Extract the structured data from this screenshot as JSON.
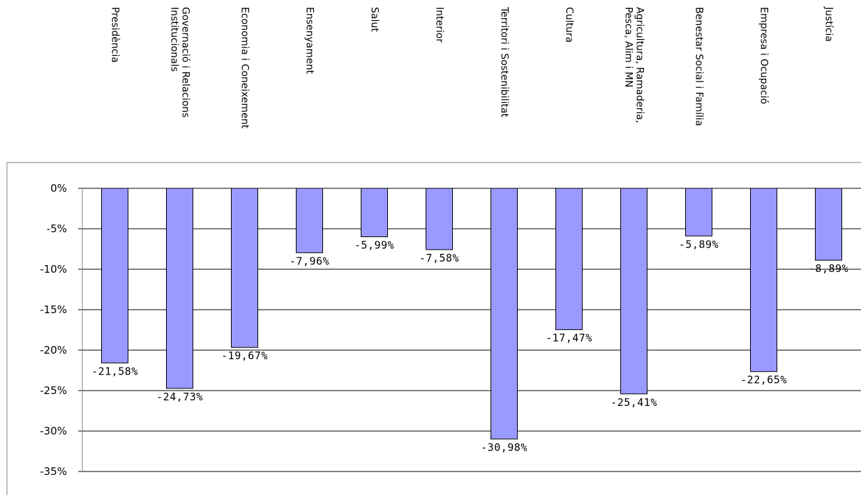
{
  "chart_data": {
    "type": "bar",
    "title": "",
    "xlabel": "",
    "ylabel": "",
    "categories": [
      "Presidència",
      "Governació i Relacions Institucionals",
      "Economia i Coneixement",
      "Ensenyament",
      "Salut",
      "Interior",
      "Territori i Sostenibilitat",
      "Cultura",
      "Agricultura, Ramaderia, Pesca, Alim i MN",
      "Benestar Social i Família",
      "Empresa i Ocupació",
      "Justícia"
    ],
    "category_label_lines": [
      [
        "Presidència"
      ],
      [
        "Governació i Relacions",
        "Institucionals"
      ],
      [
        "Economia i Coneixement"
      ],
      [
        "Ensenyament"
      ],
      [
        "Salut"
      ],
      [
        "Interior"
      ],
      [
        "Territori i Sostenibilitat"
      ],
      [
        "Cultura"
      ],
      [
        "Agricultura, Ramaderia,",
        "Pesca, Alim i MN"
      ],
      [
        "Benestar Social i Família"
      ],
      [
        "Empresa i Ocupació"
      ],
      [
        "Justícia"
      ]
    ],
    "values": [
      -21.58,
      -24.73,
      -19.67,
      -7.96,
      -5.99,
      -7.58,
      -30.98,
      -17.47,
      -25.41,
      -5.89,
      -22.65,
      -8.89
    ],
    "data_labels": [
      "-21,58%",
      "-24,73%",
      "-19,67%",
      "-7,96%",
      "-5,99%",
      "-7,58%",
      "-30,98%",
      "-17,47%",
      "-25,41%",
      "-5,89%",
      "-22,65%",
      "-8,89%"
    ],
    "yticks": [
      0,
      -5,
      -10,
      -15,
      -20,
      -25,
      -30,
      -35
    ],
    "ytick_labels": [
      "0%",
      "-5%",
      "-10%",
      "-15%",
      "-20%",
      "-25%",
      "-30%",
      "-35%"
    ],
    "ylim": [
      -35,
      0
    ],
    "grid": true,
    "legend": "none",
    "colors": {
      "bar_fill": "#9999ff",
      "bar_stroke": "#000000",
      "grid": "#000000",
      "axis": "#808080",
      "background": "#ffffff"
    }
  }
}
